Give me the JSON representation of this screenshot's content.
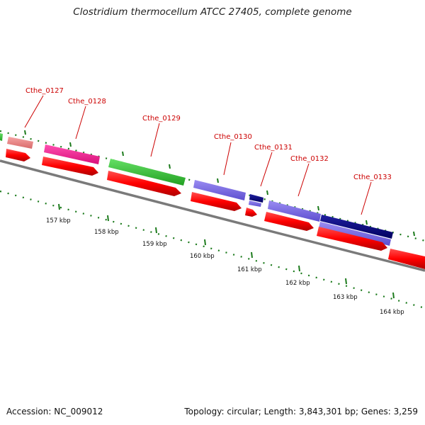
{
  "header": {
    "title": "Clostridium thermocellum ATCC 27405, complete genome"
  },
  "footer": {
    "accession": "Accession: NC_009012",
    "summary": "Topology: circular; Length: 3,843,301 bp; Genes: 3,259"
  },
  "colors": {
    "backbone": "#888888",
    "tick": "#1b7a1b",
    "label": "#cc0000",
    "cds_strand": "#ff0000",
    "salmon": "#f08080",
    "magenta": "#ff1493",
    "green": "#33cc33",
    "periwinkle": "#7b68ee",
    "navy": "#000080"
  },
  "genes": [
    {
      "label": "",
      "category": "green"
    },
    {
      "label": "Cthe_0127",
      "category": "salmon"
    },
    {
      "label": "Cthe_0128",
      "category": "magenta"
    },
    {
      "label": "Cthe_0129",
      "category": "green"
    },
    {
      "label": "Cthe_0130",
      "category": "periwinkle"
    },
    {
      "label": "Cthe_0131",
      "category": "navy+periwinkle"
    },
    {
      "label": "Cthe_0132",
      "category": "periwinkle"
    },
    {
      "label": "Cthe_0133",
      "category": "navy+periwinkle"
    }
  ],
  "scale_labels": [
    "157 kbp",
    "158 kbp",
    "159 kbp",
    "160 kbp",
    "161 kbp",
    "162 kbp",
    "163 kbp",
    "164 kbp"
  ]
}
